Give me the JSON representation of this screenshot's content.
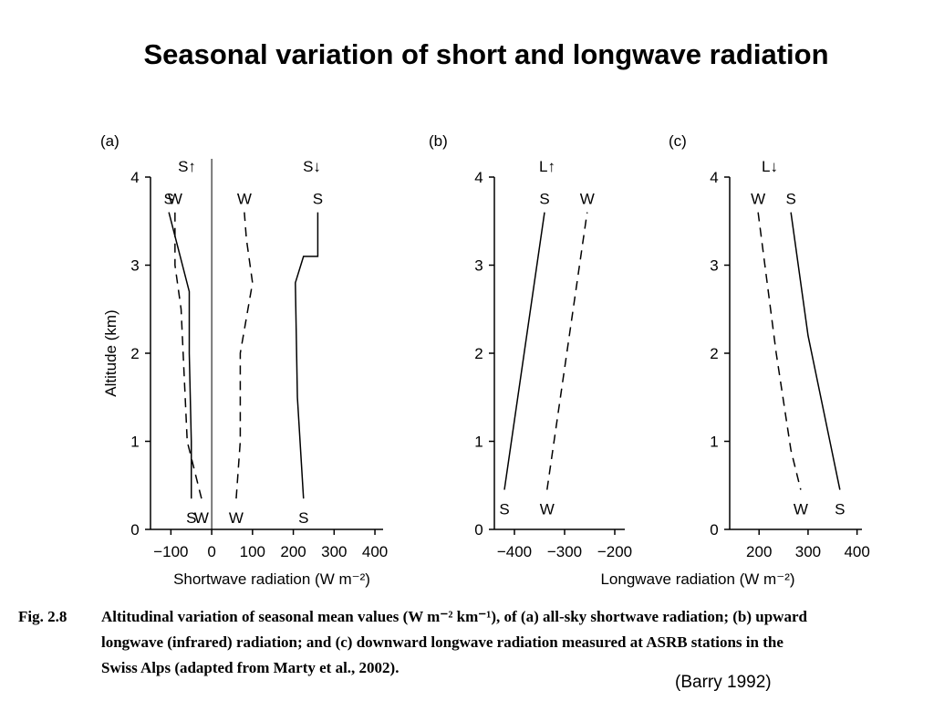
{
  "slide_title": "Seasonal variation of short and longwave radiation",
  "caption": {
    "fig_label": "Fig. 2.8",
    "line1": "Altitudinal variation of seasonal mean values (W m⁻² km⁻¹), of (a) all-sky shortwave radiation; (b) upward",
    "line2": "longwave (infrared) radiation; and (c) downward longwave radiation measured at ASRB stations in the",
    "line3": "Swiss Alps (adapted from Marty et al., 2002)."
  },
  "source_note": "(Barry 1992)",
  "chart_data": [
    {
      "type": "line",
      "panel": "(a)",
      "header_left": "S↑",
      "header_right": "S↓",
      "xlabel": "Shortwave radiation (W m⁻²)",
      "ylabel": "Altitude (km)",
      "xlim": [
        -150,
        420
      ],
      "ylim": [
        0,
        4
      ],
      "xticks": [
        "−100",
        "0",
        "100",
        "200",
        "300",
        "400"
      ],
      "xtick_values": [
        -100,
        0,
        100,
        200,
        300,
        400
      ],
      "yticks": [
        "0",
        "1",
        "2",
        "3",
        "4"
      ],
      "series": [
        {
          "label_top": "S",
          "label_bottom": "S",
          "style": "solid",
          "points": [
            [
              -50,
              0.35
            ],
            [
              -50,
              1.0
            ],
            [
              -55,
              2.0
            ],
            [
              -55,
              2.7
            ],
            [
              -105,
              3.6
            ]
          ]
        },
        {
          "label_top": "W",
          "label_bottom": "W",
          "style": "dashed",
          "points": [
            [
              -25,
              0.35
            ],
            [
              -60,
              1.0
            ],
            [
              -65,
              1.5
            ],
            [
              -75,
              2.5
            ],
            [
              -90,
              3.0
            ],
            [
              -90,
              3.6
            ]
          ]
        },
        {
          "label_top": "W",
          "label_bottom": "W",
          "style": "dashed",
          "points": [
            [
              60,
              0.35
            ],
            [
              70,
              1.0
            ],
            [
              70,
              2.0
            ],
            [
              100,
              2.8
            ],
            [
              85,
              3.3
            ],
            [
              80,
              3.6
            ]
          ]
        },
        {
          "label_top": "S",
          "label_bottom": "S",
          "style": "solid",
          "points": [
            [
              225,
              0.35
            ],
            [
              210,
              1.5
            ],
            [
              205,
              2.8
            ],
            [
              225,
              3.1
            ],
            [
              260,
              3.1
            ],
            [
              260,
              3.6
            ]
          ]
        }
      ]
    },
    {
      "type": "line",
      "panel": "(b)",
      "header_left": "L↑",
      "header_right": "",
      "xlabel": "Longwave radiation (W m⁻²)",
      "ylabel": "",
      "xlim": [
        -440,
        -180
      ],
      "ylim": [
        0,
        4
      ],
      "xticks": [
        "−400",
        "−300",
        "−200"
      ],
      "xtick_values": [
        -400,
        -300,
        -200
      ],
      "yticks": [
        "0",
        "1",
        "2",
        "3",
        "4"
      ],
      "series": [
        {
          "label_top": "S",
          "label_bottom": "S",
          "style": "solid",
          "points": [
            [
              -420,
              0.45
            ],
            [
              -340,
              3.6
            ]
          ]
        },
        {
          "label_top": "W",
          "label_bottom": "W",
          "style": "dashed",
          "points": [
            [
              -335,
              0.45
            ],
            [
              -255,
              3.6
            ]
          ]
        }
      ]
    },
    {
      "type": "line",
      "panel": "(c)",
      "header_left": "L↓",
      "header_right": "",
      "xlabel": "",
      "ylabel": "",
      "xlim": [
        140,
        410
      ],
      "ylim": [
        0,
        4
      ],
      "xticks": [
        "200",
        "300",
        "400"
      ],
      "xtick_values": [
        200,
        300,
        400
      ],
      "yticks": [
        "0",
        "1",
        "2",
        "3",
        "4"
      ],
      "series": [
        {
          "label_top": "W",
          "label_bottom": "W",
          "style": "dashed",
          "points": [
            [
              198,
              3.6
            ],
            [
              235,
              2.0
            ],
            [
              265,
              0.9
            ],
            [
              285,
              0.45
            ]
          ]
        },
        {
          "label_top": "S",
          "label_bottom": "S",
          "style": "solid",
          "points": [
            [
              265,
              3.6
            ],
            [
              300,
              2.2
            ],
            [
              365,
              0.45
            ]
          ]
        }
      ]
    }
  ]
}
